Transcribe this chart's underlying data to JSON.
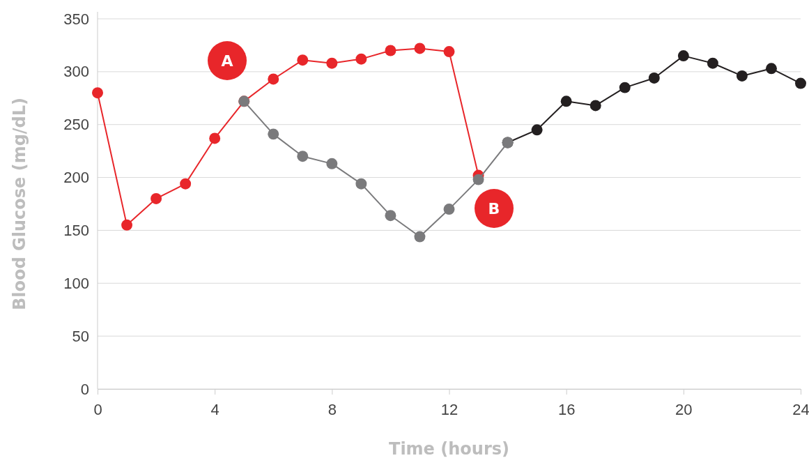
{
  "chart_data": {
    "type": "line",
    "xlabel": "Time (hours)",
    "ylabel": "Blood Glucose (mg/dL)",
    "xlim": [
      0,
      24
    ],
    "xticks": [
      0,
      4,
      8,
      12,
      16,
      20,
      24
    ],
    "ylim": [
      0,
      350
    ],
    "yticks": [
      0,
      50,
      100,
      150,
      200,
      250,
      300,
      350
    ],
    "grid": "y",
    "marker": "circle",
    "line_style": "solid",
    "series": [
      {
        "color": "#e8262a",
        "x": [
          0,
          1,
          2,
          3,
          4,
          5,
          6,
          7,
          8,
          9,
          10,
          11,
          12,
          13
        ],
        "values": [
          280,
          155,
          180,
          194,
          237,
          272,
          293,
          311,
          308,
          312,
          320,
          322,
          319,
          202
        ]
      },
      {
        "color": "#231f20",
        "x": [
          14,
          15,
          16,
          17,
          18,
          19,
          20,
          21,
          22,
          23,
          24
        ],
        "values": [
          233,
          245,
          272,
          268,
          285,
          294,
          315,
          308,
          296,
          303,
          289
        ]
      },
      {
        "color": "#7a7a7c",
        "x": [
          5,
          6,
          7,
          8,
          9,
          10,
          11,
          12,
          13,
          14
        ],
        "values": [
          272,
          241,
          220,
          213,
          194,
          164,
          144,
          170,
          198,
          233
        ]
      }
    ],
    "annotations": [
      "A",
      "B"
    ]
  }
}
